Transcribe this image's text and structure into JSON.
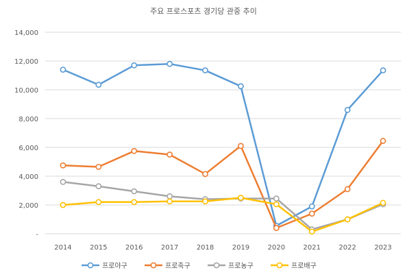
{
  "chart_data": {
    "type": "line",
    "title": "주요 프로스포츠 경기당 관중 추이",
    "xlabel": "",
    "ylabel": "",
    "x": [
      "2014",
      "2015",
      "2016",
      "2017",
      "2018",
      "2019",
      "2020",
      "2021",
      "2022",
      "2023"
    ],
    "ylim": [
      0,
      14000
    ],
    "yticks": [
      0,
      2000,
      4000,
      6000,
      8000,
      10000,
      12000,
      14000
    ],
    "ytick_labels": [
      "-",
      "2,000",
      "4,000",
      "6,000",
      "8,000",
      "10,000",
      "12,000",
      "14,000"
    ],
    "grid": true,
    "legend_position": "bottom",
    "series": [
      {
        "name": "프로야구",
        "color": "#5b9bd5",
        "values": [
          11400,
          10350,
          11700,
          11800,
          11350,
          10250,
          550,
          1900,
          8600,
          11350
        ]
      },
      {
        "name": "프로축구",
        "color": "#ed7d31",
        "values": [
          4750,
          4650,
          5750,
          5500,
          4150,
          6100,
          400,
          1400,
          3100,
          6450
        ]
      },
      {
        "name": "프로농구",
        "color": "#a5a5a5",
        "values": [
          3600,
          3300,
          2950,
          2600,
          2400,
          2450,
          2450,
          300,
          1000,
          2050
        ]
      },
      {
        "name": "프로배구",
        "color": "#ffc000",
        "values": [
          2000,
          2200,
          2200,
          2250,
          2250,
          2500,
          2050,
          150,
          1000,
          2150
        ]
      }
    ]
  }
}
